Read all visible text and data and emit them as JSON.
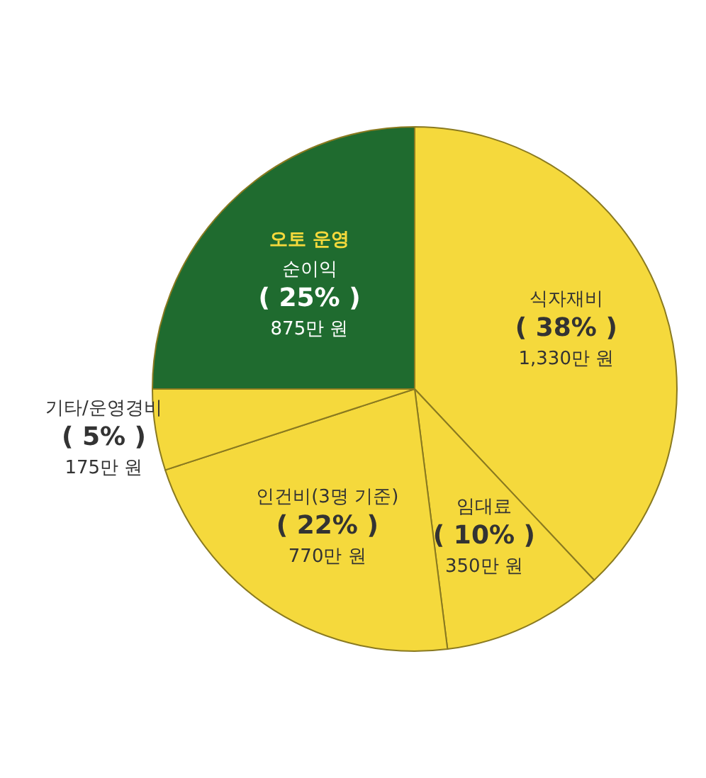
{
  "chart_data": {
    "type": "pie",
    "categories": [
      "식자재비",
      "임대료",
      "인건비(3명 기준)",
      "기타/운영경비",
      "순이익"
    ],
    "values": [
      38,
      10,
      22,
      5,
      25
    ],
    "colors": [
      "#f5d93c",
      "#f5d93c",
      "#f5d93c",
      "#f5d93c",
      "#1f6b2f"
    ],
    "value_labels": [
      "( 38% )",
      "( 10% )",
      "( 22% )",
      "( 5% )",
      "( 25% )"
    ],
    "annotations": [
      {
        "text": "오토 운영",
        "x": "순이익"
      },
      {
        "text": "1,330만 원",
        "x": "식자재비"
      },
      {
        "text": "350만 원",
        "x": "임대료"
      },
      {
        "text": "770만 원",
        "x": "인건비(3명 기준)"
      },
      {
        "text": "175만 원",
        "x": "기타/운영경비"
      },
      {
        "text": "875만 원",
        "x": "순이익"
      }
    ]
  }
}
